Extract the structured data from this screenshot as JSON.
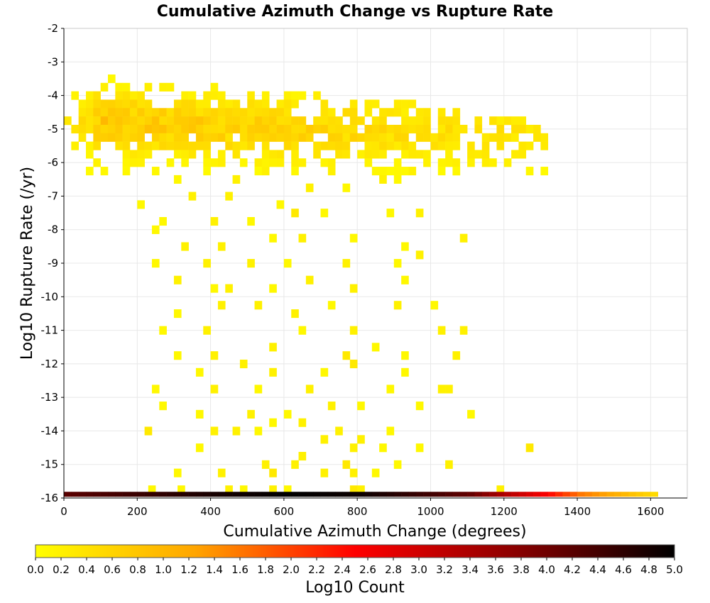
{
  "chart_data": {
    "type": "heatmap",
    "title": "Cumulative Azimuth Change vs Rupture Rate",
    "xlabel": "Cumulative Azimuth Change (degrees)",
    "ylabel": "Log10 Rupture Rate (/yr)",
    "xlim": [
      0,
      1700
    ],
    "ylim": [
      -16,
      -2
    ],
    "xticks": [
      0,
      200,
      400,
      600,
      800,
      1000,
      1200,
      1400,
      1600
    ],
    "yticks": [
      -2,
      -3,
      -4,
      -5,
      -6,
      -7,
      -8,
      -9,
      -10,
      -11,
      -12,
      -13,
      -14,
      -15,
      -16
    ],
    "bin_width_x": 20,
    "bin_height_y": 0.25,
    "grid": true,
    "colorbar": {
      "label": "Log10 Count",
      "range": [
        0,
        5
      ],
      "ticks": [
        "0.0",
        "0.2",
        "0.4",
        "0.6",
        "0.8",
        "1.0",
        "1.2",
        "1.4",
        "1.6",
        "1.8",
        "2.0",
        "2.2",
        "2.4",
        "2.6",
        "2.8",
        "3.0",
        "3.2",
        "3.4",
        "3.6",
        "3.8",
        "4.0",
        "4.2",
        "4.4",
        "4.6",
        "4.8",
        "5.0"
      ],
      "colors": [
        "#ffff00",
        "#ffa500",
        "#ff0000",
        "#8b0000",
        "#000000"
      ]
    },
    "dense_region": {
      "x_range": [
        0,
        1320
      ],
      "y_range": [
        -6.25,
        -3.25
      ],
      "max_value": 0.9
    },
    "bottom_row": {
      "y": -15.9,
      "x_range": [
        0,
        1620
      ],
      "profile": [
        [
          0,
          4.2
        ],
        [
          200,
          4.5
        ],
        [
          400,
          4.8
        ],
        [
          600,
          5.0
        ],
        [
          800,
          4.9
        ],
        [
          1000,
          4.4
        ],
        [
          1100,
          4.1
        ],
        [
          1200,
          3.3
        ],
        [
          1300,
          2.6
        ],
        [
          1400,
          1.6
        ],
        [
          1500,
          1.1
        ],
        [
          1620,
          0.4
        ]
      ]
    },
    "sparse_cells": [
      [
        230,
        -15.75,
        0.1
      ],
      [
        310,
        -15.75,
        0.1
      ],
      [
        440,
        -15.75,
        0.2
      ],
      [
        480,
        -15.75,
        0.1
      ],
      [
        560,
        -15.75,
        0.2
      ],
      [
        600,
        -15.75,
        0.1
      ],
      [
        780,
        -15.75,
        0.3
      ],
      [
        800,
        -15.75,
        0.2
      ],
      [
        1180,
        -15.75,
        0.2
      ],
      [
        300,
        -15.25,
        0.1
      ],
      [
        420,
        -15.25,
        0.2
      ],
      [
        560,
        -15.25,
        0.3
      ],
      [
        700,
        -15.25,
        0.2
      ],
      [
        780,
        -15.25,
        0.2
      ],
      [
        840,
        -15.25,
        0.1
      ],
      [
        540,
        -15.0,
        0.2
      ],
      [
        620,
        -15.0,
        0.2
      ],
      [
        760,
        -15.0,
        0.3
      ],
      [
        900,
        -15.0,
        0.1
      ],
      [
        1040,
        -15.0,
        0.2
      ],
      [
        360,
        -14.5,
        0.1
      ],
      [
        640,
        -14.75,
        0.2
      ],
      [
        780,
        -14.5,
        0.2
      ],
      [
        860,
        -14.5,
        0.1
      ],
      [
        960,
        -14.5,
        0.1
      ],
      [
        1260,
        -14.5,
        0.3
      ],
      [
        520,
        -14.0,
        0.1
      ],
      [
        700,
        -14.25,
        0.2
      ],
      [
        800,
        -14.25,
        0.2
      ],
      [
        220,
        -14.0,
        0.3
      ],
      [
        400,
        -14.0,
        0.2
      ],
      [
        460,
        -14.0,
        0.2
      ],
      [
        560,
        -13.75,
        0.1
      ],
      [
        640,
        -13.75,
        0.2
      ],
      [
        740,
        -14.0,
        0.2
      ],
      [
        880,
        -14.0,
        0.1
      ],
      [
        260,
        -13.25,
        0.1
      ],
      [
        360,
        -13.5,
        0.1
      ],
      [
        500,
        -13.5,
        0.2
      ],
      [
        600,
        -13.5,
        0.1
      ],
      [
        720,
        -13.25,
        0.2
      ],
      [
        800,
        -13.25,
        0.1
      ],
      [
        960,
        -13.25,
        0.1
      ],
      [
        1100,
        -13.5,
        0.1
      ],
      [
        240,
        -12.75,
        0.1
      ],
      [
        400,
        -12.75,
        0.2
      ],
      [
        520,
        -12.75,
        0.1
      ],
      [
        660,
        -12.75,
        0.2
      ],
      [
        880,
        -12.75,
        0.1
      ],
      [
        1020,
        -12.75,
        0.2
      ],
      [
        1040,
        -12.75,
        0.2
      ],
      [
        360,
        -12.25,
        0.1
      ],
      [
        480,
        -12.0,
        0.2
      ],
      [
        560,
        -12.25,
        0.2
      ],
      [
        700,
        -12.25,
        0.1
      ],
      [
        780,
        -12.0,
        0.3
      ],
      [
        920,
        -12.25,
        0.1
      ],
      [
        300,
        -11.75,
        0.1
      ],
      [
        400,
        -11.75,
        0.2
      ],
      [
        560,
        -11.5,
        0.2
      ],
      [
        760,
        -11.75,
        0.3
      ],
      [
        840,
        -11.5,
        0.1
      ],
      [
        920,
        -11.75,
        0.1
      ],
      [
        1060,
        -11.75,
        0.2
      ],
      [
        260,
        -11.0,
        0.1
      ],
      [
        380,
        -11.0,
        0.2
      ],
      [
        640,
        -11.0,
        0.1
      ],
      [
        780,
        -11.0,
        0.2
      ],
      [
        1020,
        -11.0,
        0.2
      ],
      [
        1080,
        -11.0,
        0.2
      ],
      [
        300,
        -10.5,
        0.1
      ],
      [
        420,
        -10.25,
        0.2
      ],
      [
        520,
        -10.25,
        0.2
      ],
      [
        620,
        -10.5,
        0.2
      ],
      [
        720,
        -10.25,
        0.1
      ],
      [
        900,
        -10.25,
        0.2
      ],
      [
        1000,
        -10.25,
        0.1
      ],
      [
        300,
        -9.5,
        0.2
      ],
      [
        400,
        -9.75,
        0.1
      ],
      [
        440,
        -9.75,
        0.2
      ],
      [
        560,
        -9.75,
        0.1
      ],
      [
        660,
        -9.5,
        0.2
      ],
      [
        780,
        -9.75,
        0.2
      ],
      [
        920,
        -9.5,
        0.1
      ],
      [
        240,
        -9.0,
        0.1
      ],
      [
        380,
        -9.0,
        0.2
      ],
      [
        500,
        -9.0,
        0.2
      ],
      [
        600,
        -9.0,
        0.1
      ],
      [
        760,
        -9.0,
        0.2
      ],
      [
        900,
        -9.0,
        0.1
      ],
      [
        960,
        -8.75,
        0.2
      ],
      [
        240,
        -8.0,
        0.1
      ],
      [
        320,
        -8.5,
        0.2
      ],
      [
        420,
        -8.5,
        0.2
      ],
      [
        560,
        -8.25,
        0.1
      ],
      [
        640,
        -8.25,
        0.2
      ],
      [
        780,
        -8.25,
        0.1
      ],
      [
        920,
        -8.5,
        0.1
      ],
      [
        1080,
        -8.25,
        0.2
      ],
      [
        260,
        -7.75,
        0.1
      ],
      [
        400,
        -7.75,
        0.2
      ],
      [
        500,
        -7.75,
        0.1
      ],
      [
        620,
        -7.5,
        0.3
      ],
      [
        700,
        -7.5,
        0.1
      ],
      [
        880,
        -7.5,
        0.1
      ],
      [
        960,
        -7.5,
        0.2
      ],
      [
        200,
        -7.25,
        0.1
      ],
      [
        340,
        -7.0,
        0.2
      ],
      [
        440,
        -7.0,
        0.2
      ],
      [
        580,
        -7.25,
        0.1
      ],
      [
        660,
        -6.75,
        0.2
      ],
      [
        760,
        -6.75,
        0.1
      ],
      [
        860,
        -6.5,
        0.2
      ],
      [
        900,
        -6.5,
        0.1
      ],
      [
        200,
        -6.0,
        0.2
      ],
      [
        300,
        -6.5,
        0.1
      ],
      [
        460,
        -6.5,
        0.2
      ],
      [
        540,
        -6.25,
        0.2
      ],
      [
        620,
        -6.25,
        0.1
      ],
      [
        720,
        -6.25,
        0.2
      ],
      [
        940,
        -6.25,
        0.2
      ],
      [
        1060,
        -6.25,
        0.1
      ],
      [
        1160,
        -6.0,
        0.2
      ],
      [
        1200,
        -6.0,
        0.2
      ]
    ]
  }
}
